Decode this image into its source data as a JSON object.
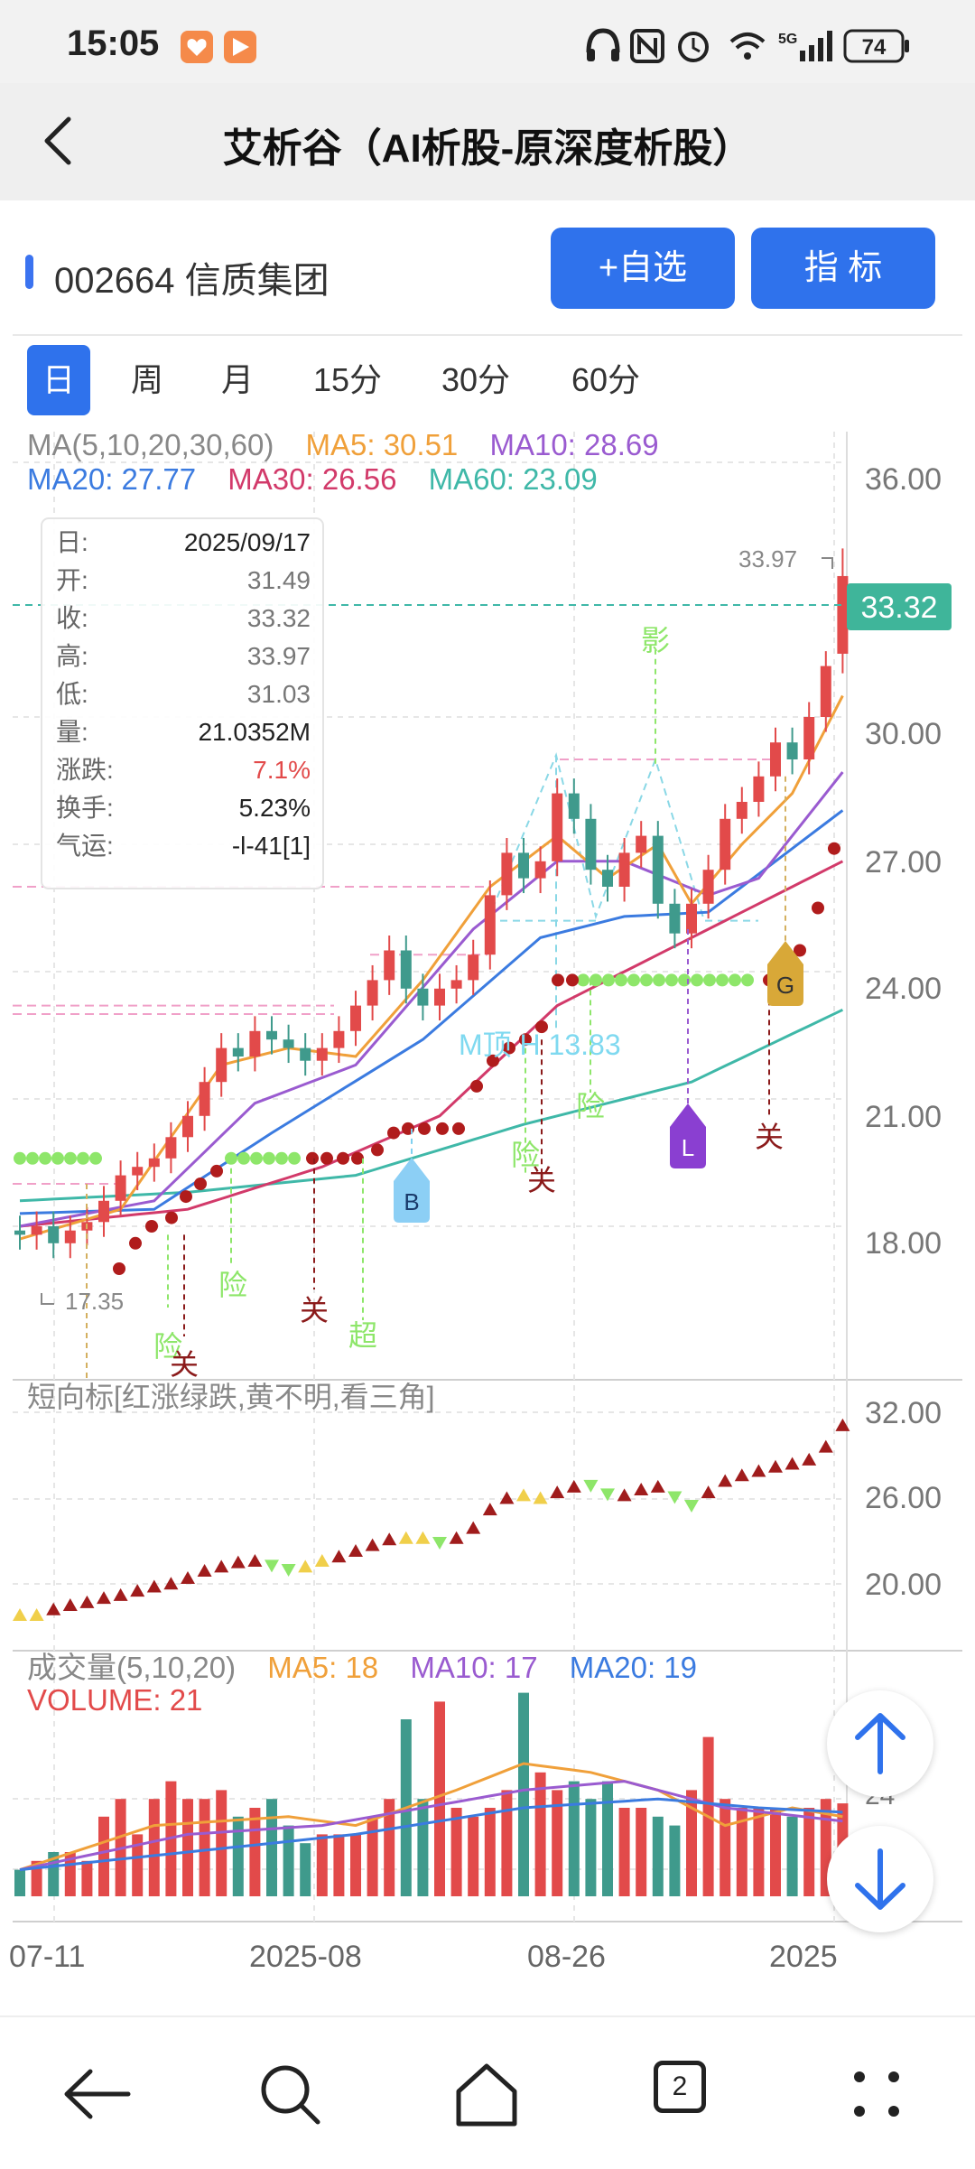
{
  "status_bar": {
    "time": "15:05",
    "battery": "74",
    "network": "5G"
  },
  "header": {
    "title": "艾析谷（AI析股-原深度析股）"
  },
  "stock": {
    "code_name": "002664 信质集团"
  },
  "buttons": {
    "watchlist": "+自选",
    "indicator": "指  标"
  },
  "tabs": [
    "日",
    "周",
    "月",
    "15分",
    "30分",
    "60分"
  ],
  "active_tab": "日",
  "ma_legend": {
    "label": "MA(5,10,20,30,60)",
    "ma5": "MA5: 30.51",
    "ma10": "MA10: 28.69",
    "ma20": "MA20: 27.77",
    "ma30": "MA30: 26.56",
    "ma60": "MA60: 23.09"
  },
  "info_panel": [
    {
      "k": "日:",
      "v": "2025/09/17",
      "color": "#222222"
    },
    {
      "k": "开:",
      "v": "31.49",
      "color": "#777777"
    },
    {
      "k": "收:",
      "v": "33.32",
      "color": "#777777"
    },
    {
      "k": "高:",
      "v": "33.97",
      "color": "#777777"
    },
    {
      "k": "低:",
      "v": "31.03",
      "color": "#777777"
    },
    {
      "k": "量:",
      "v": "21.0352M",
      "color": "#222222"
    },
    {
      "k": "涨跌:",
      "v": "7.1%",
      "color": "#e24a4a"
    },
    {
      "k": "换手:",
      "v": "5.23%",
      "color": "#222222"
    },
    {
      "k": "气运:",
      "v": "-l-41[1]",
      "color": "#222222"
    }
  ],
  "price_axis": [
    "36.00",
    "30.00",
    "27.00",
    "24.00",
    "21.00",
    "18.00"
  ],
  "current_price": "33.32",
  "annotations": {
    "high": "33.97",
    "low": "17.35",
    "pattern": "M顶 H 13.83",
    "signal_b": "B",
    "signal_l": "L",
    "signal_g": "G",
    "ying": "影",
    "xian": "险",
    "guan": "关",
    "chao": "超"
  },
  "short_indicator": {
    "label": "短向标[红涨绿跌,黄不明,看三角]",
    "axis": [
      "32.00",
      "26.00",
      "20.00"
    ]
  },
  "volume_panel": {
    "label": "成交量(5,10,20)",
    "ma5": "MA5: 18",
    "ma10": "MA10: 17",
    "ma20": "MA20: 19",
    "volume": "VOLUME: 21",
    "axis": "24"
  },
  "date_axis": [
    "07-11",
    "2025-08",
    "08-26",
    "2025"
  ],
  "colors": {
    "up": "#e24a4a",
    "down": "#3f9a8c",
    "ma5": "#f0a03a",
    "ma10": "#9a5bd0",
    "ma20": "#3b7be0",
    "ma30": "#d23a6a",
    "ma60": "#3fb8a8",
    "accent": "#2f72ec"
  },
  "bottom_nav": {
    "tabs_count": "2"
  }
}
